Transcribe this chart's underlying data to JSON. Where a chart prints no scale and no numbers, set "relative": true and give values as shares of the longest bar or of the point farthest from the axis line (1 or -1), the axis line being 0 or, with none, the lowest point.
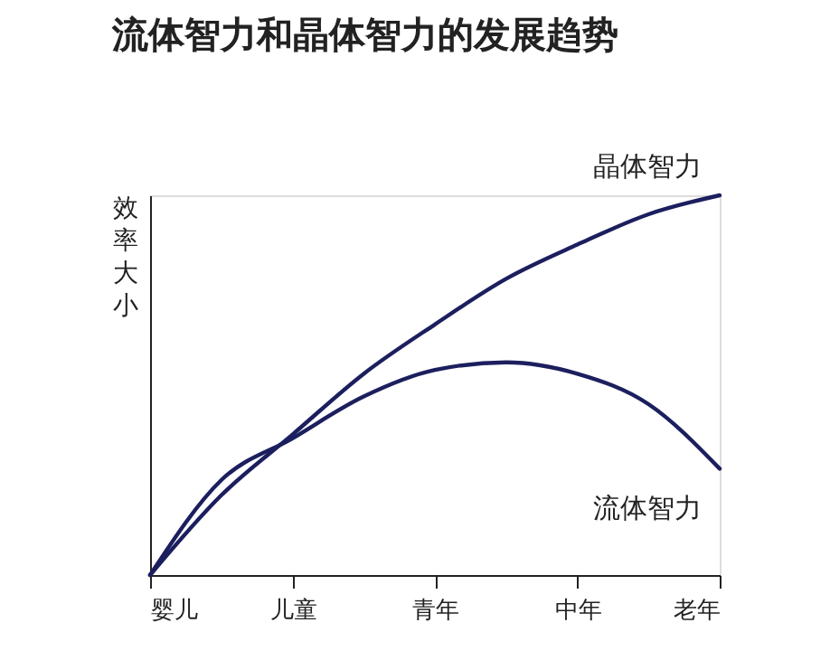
{
  "chart_data": {
    "type": "line",
    "title": "流体智力和晶体智力的发展趋势",
    "ylabel": "效率大小",
    "relative": true,
    "categories": [
      "婴儿",
      null,
      "儿童",
      null,
      "青年",
      null,
      "中年",
      null,
      "老年"
    ],
    "series": [
      {
        "name": "晶体智力",
        "color": "#1c1f5e",
        "values": [
          0,
          0.21,
          0.37,
          0.53,
          0.66,
          0.78,
          0.87,
          0.95,
          1.0
        ]
      },
      {
        "name": "流体智力",
        "color": "#1c1f5e",
        "values": [
          0,
          0.25,
          0.36,
          0.47,
          0.54,
          0.56,
          0.53,
          0.45,
          0.28
        ]
      }
    ],
    "grid": false,
    "legend": false,
    "marker": "none",
    "line_style": "solid"
  }
}
